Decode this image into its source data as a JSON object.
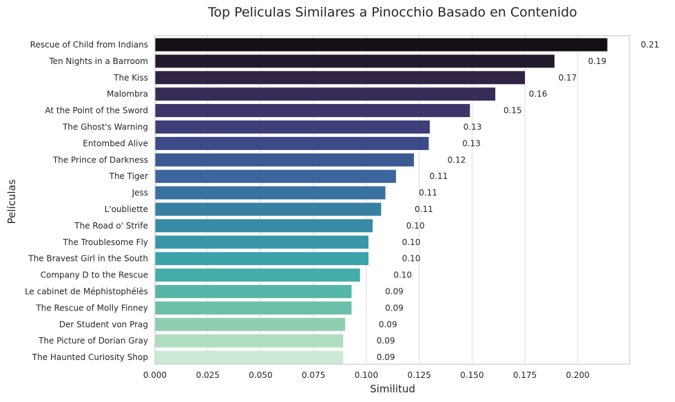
{
  "chart_data": {
    "type": "bar",
    "orientation": "horizontal",
    "title": "Top Peliculas Similares a Pinocchio Basado en Contenido",
    "xlabel": "Similitud",
    "ylabel": "Películas",
    "xlim": [
      0.0,
      0.2245
    ],
    "xticks": [
      "0.000",
      "0.025",
      "0.050",
      "0.075",
      "0.100",
      "0.125",
      "0.150",
      "0.175",
      "0.200"
    ],
    "grid": "vertical",
    "palette": "mako",
    "categories": [
      "Rescue of Child from Indians",
      "Ten Nights in a Barroom",
      "The Kiss",
      "Malombra",
      "At the Point of the Sword",
      "The Ghost's Warning",
      "Entombed Alive",
      "The Prince of Darkness",
      "The Tiger",
      "Jess",
      "L'oubliette",
      "The Road o' Strife",
      "The Troublesome Fly",
      "The Bravest Girl in the South",
      "Company D to the Rescue",
      "Le cabinet de Méphistophélès",
      "The Rescue of Molly Finney",
      "Der Student von Prag",
      "The Picture of Dorian Gray",
      "The Haunted Curiosity Shop"
    ],
    "values": [
      0.214,
      0.189,
      0.175,
      0.161,
      0.149,
      0.13,
      0.1295,
      0.1225,
      0.114,
      0.109,
      0.107,
      0.103,
      0.101,
      0.101,
      0.097,
      0.093,
      0.093,
      0.09,
      0.089,
      0.089
    ],
    "labels": [
      "0.21",
      "0.19",
      "0.17",
      "0.16",
      "0.15",
      "0.13",
      "0.13",
      "0.12",
      "0.11",
      "0.11",
      "0.11",
      "0.10",
      "0.10",
      "0.10",
      "0.10",
      "0.09",
      "0.09",
      "0.09",
      "0.09",
      "0.09"
    ],
    "colors": [
      "#140e16",
      "#241a2e",
      "#2f2243",
      "#372b57",
      "#3c3569",
      "#3e3f7a",
      "#3d4a88",
      "#3c5994",
      "#3b659c",
      "#3a71a0",
      "#3780a4",
      "#368ba6",
      "#3797a8",
      "#3ba3a9",
      "#45aca9",
      "#55b7a8",
      "#6cc0aa",
      "#8fceb1",
      "#afddbf",
      "#cbe9d4"
    ]
  }
}
